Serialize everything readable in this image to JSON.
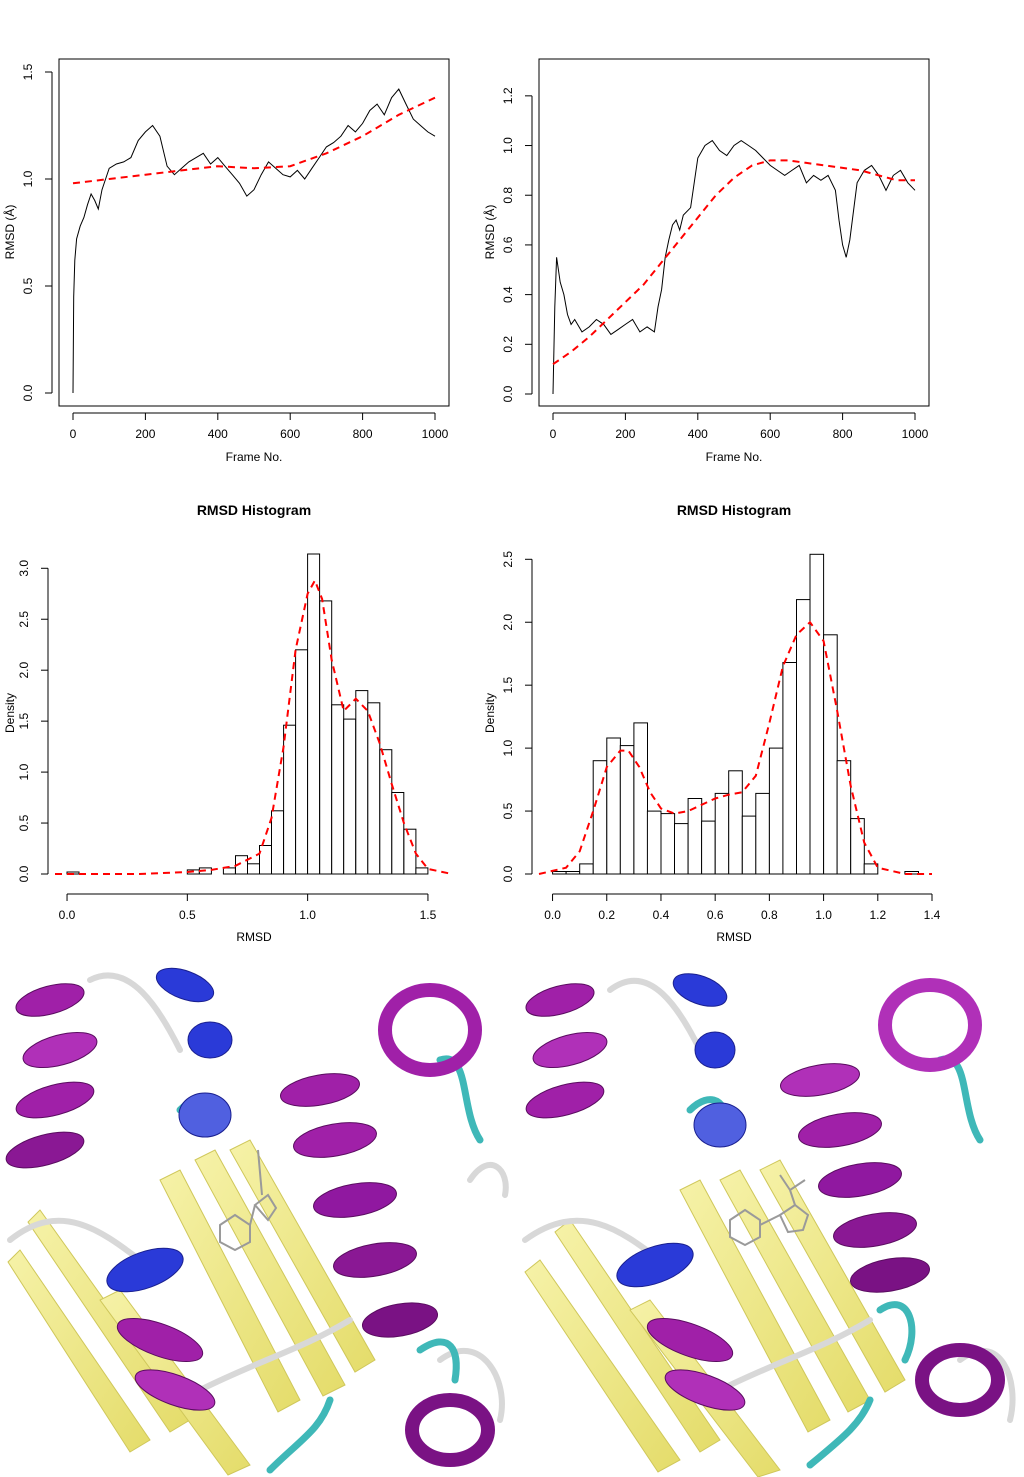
{
  "chart_data": [
    {
      "type": "line",
      "panel": "top-left",
      "title": "",
      "xlabel": "Frame No.",
      "ylabel": "RMSD (Å)",
      "xlim": [
        0,
        1000
      ],
      "ylim": [
        0,
        1.5
      ],
      "x_ticks": [
        0,
        200,
        400,
        600,
        800,
        1000
      ],
      "x_tick_labels": [
        "0",
        "200",
        "400",
        "600",
        "800",
        "1000"
      ],
      "y_ticks": [
        0,
        0.5,
        1.0,
        1.5
      ],
      "y_tick_labels": [
        "0.0",
        "0.5",
        "1.0",
        "1.5"
      ],
      "grid": false,
      "series": [
        {
          "color": "#000000",
          "style": "solid",
          "x": [
            0,
            2,
            5,
            10,
            20,
            30,
            40,
            50,
            60,
            70,
            80,
            90,
            100,
            120,
            140,
            160,
            180,
            200,
            220,
            240,
            260,
            280,
            300,
            320,
            340,
            360,
            380,
            400,
            420,
            440,
            460,
            480,
            500,
            520,
            540,
            560,
            580,
            600,
            620,
            640,
            660,
            680,
            700,
            720,
            740,
            760,
            780,
            800,
            820,
            840,
            860,
            880,
            900,
            920,
            940,
            960,
            980,
            1000
          ],
          "values": [
            0.0,
            0.45,
            0.62,
            0.72,
            0.78,
            0.82,
            0.88,
            0.93,
            0.9,
            0.86,
            0.95,
            1.0,
            1.05,
            1.07,
            1.08,
            1.1,
            1.18,
            1.22,
            1.25,
            1.2,
            1.06,
            1.02,
            1.05,
            1.08,
            1.1,
            1.12,
            1.07,
            1.1,
            1.06,
            1.02,
            0.98,
            0.92,
            0.95,
            1.02,
            1.08,
            1.05,
            1.02,
            1.01,
            1.04,
            1.0,
            1.05,
            1.1,
            1.15,
            1.17,
            1.2,
            1.25,
            1.22,
            1.26,
            1.32,
            1.35,
            1.3,
            1.38,
            1.42,
            1.35,
            1.28,
            1.25,
            1.22,
            1.2
          ]
        },
        {
          "color": "#ff0000",
          "style": "dashed",
          "x": [
            0,
            100,
            200,
            300,
            400,
            500,
            600,
            700,
            800,
            900,
            1000
          ],
          "values": [
            0.98,
            1.0,
            1.02,
            1.04,
            1.06,
            1.05,
            1.06,
            1.12,
            1.2,
            1.3,
            1.38
          ]
        }
      ]
    },
    {
      "type": "line",
      "panel": "top-right",
      "title": "",
      "xlabel": "Frame No.",
      "ylabel": "RMSD (Å)",
      "xlim": [
        0,
        1000
      ],
      "ylim": [
        0,
        1.3
      ],
      "x_ticks": [
        0,
        200,
        400,
        600,
        800,
        1000
      ],
      "x_tick_labels": [
        "0",
        "200",
        "400",
        "600",
        "800",
        "1000"
      ],
      "y_ticks": [
        0,
        0.2,
        0.4,
        0.6,
        0.8,
        1.0,
        1.2
      ],
      "y_tick_labels": [
        "0.0",
        "0.2",
        "0.4",
        "0.6",
        "0.8",
        "1.0",
        "1.2"
      ],
      "grid": false,
      "series": [
        {
          "color": "#000000",
          "style": "solid",
          "x": [
            0,
            5,
            10,
            20,
            30,
            40,
            50,
            60,
            80,
            100,
            120,
            140,
            160,
            180,
            200,
            220,
            240,
            260,
            280,
            290,
            300,
            310,
            320,
            330,
            340,
            350,
            360,
            380,
            400,
            420,
            440,
            460,
            480,
            500,
            520,
            540,
            560,
            580,
            600,
            620,
            640,
            660,
            680,
            700,
            720,
            740,
            760,
            780,
            790,
            800,
            810,
            820,
            840,
            860,
            880,
            900,
            920,
            940,
            960,
            980,
            1000
          ],
          "values": [
            0.0,
            0.35,
            0.55,
            0.45,
            0.4,
            0.32,
            0.28,
            0.3,
            0.25,
            0.27,
            0.3,
            0.28,
            0.24,
            0.26,
            0.28,
            0.3,
            0.25,
            0.27,
            0.25,
            0.35,
            0.42,
            0.55,
            0.62,
            0.68,
            0.7,
            0.66,
            0.72,
            0.75,
            0.95,
            1.0,
            1.02,
            0.98,
            0.96,
            1.0,
            1.02,
            1.0,
            0.98,
            0.95,
            0.92,
            0.9,
            0.88,
            0.9,
            0.92,
            0.85,
            0.88,
            0.86,
            0.88,
            0.82,
            0.7,
            0.6,
            0.55,
            0.62,
            0.85,
            0.9,
            0.92,
            0.88,
            0.82,
            0.88,
            0.9,
            0.85,
            0.82
          ]
        },
        {
          "color": "#ff0000",
          "style": "dashed",
          "x": [
            0,
            50,
            100,
            150,
            200,
            250,
            300,
            350,
            400,
            450,
            500,
            550,
            600,
            650,
            700,
            750,
            800,
            850,
            900,
            950,
            1000
          ],
          "values": [
            0.12,
            0.17,
            0.23,
            0.3,
            0.37,
            0.44,
            0.53,
            0.62,
            0.71,
            0.8,
            0.87,
            0.92,
            0.94,
            0.94,
            0.93,
            0.92,
            0.91,
            0.9,
            0.88,
            0.86,
            0.86
          ]
        }
      ]
    },
    {
      "type": "bar",
      "panel": "mid-left",
      "title": "RMSD Histogram",
      "xlabel": "RMSD",
      "ylabel": "Density",
      "xlim": [
        -0.05,
        1.6
      ],
      "ylim": [
        0,
        3.15
      ],
      "x_ticks": [
        0.0,
        0.5,
        1.0,
        1.5
      ],
      "x_tick_labels": [
        "0.0",
        "0.5",
        "1.0",
        "1.5"
      ],
      "y_ticks": [
        0,
        0.5,
        1.0,
        1.5,
        2.0,
        2.5,
        3.0
      ],
      "y_tick_labels": [
        "0.0",
        "0.5",
        "1.0",
        "1.5",
        "2.0",
        "2.5",
        "3.0"
      ],
      "grid": false,
      "bin_edges": [
        0.0,
        0.05,
        0.1,
        0.15,
        0.2,
        0.25,
        0.3,
        0.35,
        0.4,
        0.45,
        0.5,
        0.55,
        0.6,
        0.65,
        0.7,
        0.75,
        0.8,
        0.85,
        0.9,
        0.95,
        1.0,
        1.05,
        1.1,
        1.15,
        1.2,
        1.25,
        1.3,
        1.35,
        1.4,
        1.45,
        1.5
      ],
      "values": [
        0.02,
        0.0,
        0.0,
        0.0,
        0.0,
        0.0,
        0.0,
        0.0,
        0.0,
        0.0,
        0.04,
        0.06,
        0.0,
        0.06,
        0.18,
        0.1,
        0.28,
        0.62,
        1.46,
        2.2,
        3.14,
        2.68,
        1.66,
        1.52,
        1.8,
        1.68,
        1.22,
        0.8,
        0.44,
        0.06
      ],
      "density_curve": {
        "color": "#ff0000",
        "style": "dashed",
        "x": [
          -0.05,
          0.1,
          0.3,
          0.5,
          0.6,
          0.7,
          0.8,
          0.85,
          0.9,
          0.95,
          1.0,
          1.03,
          1.06,
          1.1,
          1.15,
          1.2,
          1.25,
          1.3,
          1.35,
          1.4,
          1.45,
          1.5,
          1.6
        ],
        "values": [
          0.0,
          0.0,
          0.0,
          0.02,
          0.04,
          0.08,
          0.2,
          0.55,
          1.25,
          2.2,
          2.75,
          2.88,
          2.7,
          2.1,
          1.6,
          1.72,
          1.6,
          1.28,
          0.88,
          0.5,
          0.2,
          0.05,
          0.0
        ]
      }
    },
    {
      "type": "bar",
      "panel": "mid-right",
      "title": "RMSD Histogram",
      "xlabel": "RMSD",
      "ylabel": "Density",
      "xlim": [
        -0.05,
        1.4
      ],
      "ylim": [
        0,
        2.55
      ],
      "x_ticks": [
        0.0,
        0.2,
        0.4,
        0.6,
        0.8,
        1.0,
        1.2,
        1.4
      ],
      "x_tick_labels": [
        "0.0",
        "0.2",
        "0.4",
        "0.6",
        "0.8",
        "1.0",
        "1.2",
        "1.4"
      ],
      "y_ticks": [
        0,
        0.5,
        1.0,
        1.5,
        2.0,
        2.5
      ],
      "y_tick_labels": [
        "0.0",
        "0.5",
        "1.0",
        "1.5",
        "2.0",
        "2.5"
      ],
      "grid": false,
      "bin_edges": [
        0.0,
        0.05,
        0.1,
        0.15,
        0.2,
        0.25,
        0.3,
        0.35,
        0.4,
        0.45,
        0.5,
        0.55,
        0.6,
        0.65,
        0.7,
        0.75,
        0.8,
        0.85,
        0.9,
        0.95,
        1.0,
        1.05,
        1.1,
        1.15,
        1.2,
        1.25,
        1.3,
        1.35
      ],
      "values": [
        0.02,
        0.02,
        0.08,
        0.9,
        1.08,
        1.02,
        1.2,
        0.5,
        0.48,
        0.4,
        0.6,
        0.42,
        0.64,
        0.82,
        0.46,
        0.64,
        1.0,
        1.68,
        2.18,
        2.54,
        1.9,
        0.9,
        0.44,
        0.08,
        0.0,
        0.0,
        0.02
      ],
      "density_curve": {
        "color": "#ff0000",
        "style": "dashed",
        "x": [
          -0.05,
          0.05,
          0.1,
          0.15,
          0.2,
          0.25,
          0.28,
          0.32,
          0.36,
          0.4,
          0.45,
          0.5,
          0.55,
          0.6,
          0.65,
          0.7,
          0.75,
          0.8,
          0.85,
          0.9,
          0.95,
          1.0,
          1.05,
          1.1,
          1.15,
          1.2,
          1.3,
          1.4
        ],
        "values": [
          0.0,
          0.05,
          0.18,
          0.5,
          0.85,
          0.98,
          0.98,
          0.85,
          0.65,
          0.52,
          0.48,
          0.5,
          0.55,
          0.6,
          0.63,
          0.65,
          0.78,
          1.2,
          1.65,
          1.9,
          2.0,
          1.85,
          1.3,
          0.7,
          0.25,
          0.05,
          0.0,
          0.0
        ]
      }
    }
  ],
  "images": [
    {
      "name": "protein-structure-left",
      "caption": ""
    },
    {
      "name": "protein-structure-right",
      "caption": ""
    }
  ],
  "colors": {
    "helix": "#a020a8",
    "helix_dark": "#6a0f70",
    "helix_light": "#d070d8",
    "helix_310": "#2a3ad8",
    "sheet": "#f2ec8a",
    "sheet_edge": "#cfc75a",
    "coil": "#d4d4d4",
    "turn": "#3fb8b8",
    "ligand": "#9a9a9a"
  }
}
